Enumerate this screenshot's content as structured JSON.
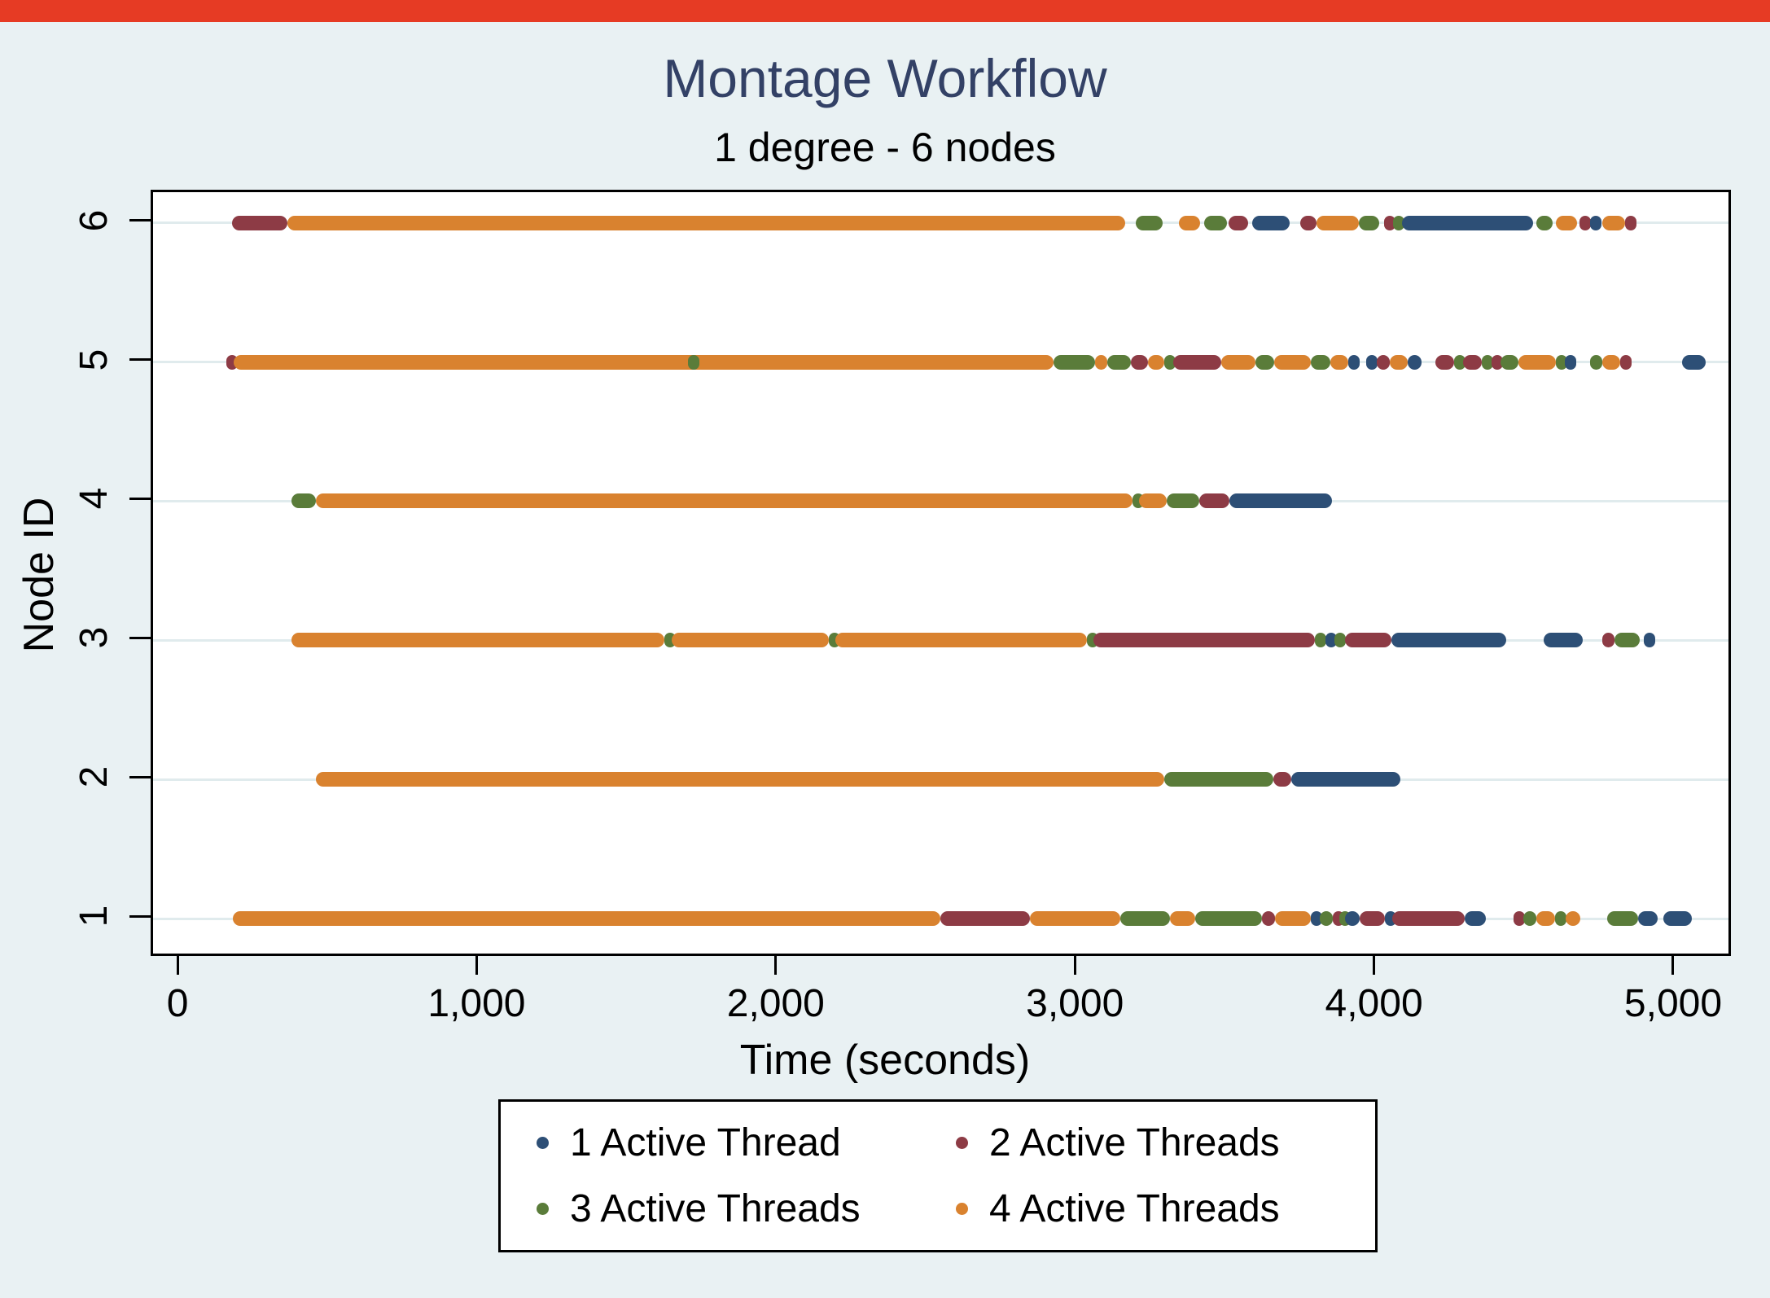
{
  "meta": {
    "top_strip_color": "#e63b24",
    "background_color": "#e9f1f3",
    "plot_background": "#ffffff",
    "grid_color": "#e0ebed",
    "axis_color": "#000000",
    "title_color": "#334166"
  },
  "chart_data": {
    "type": "scatter",
    "title": "Montage Workflow",
    "subtitle": "1 degree - 6 nodes",
    "xlabel": "Time (seconds)",
    "ylabel": "Node ID",
    "xlim": [
      -90,
      5177
    ],
    "ylim": [
      0.75,
      6.22
    ],
    "grid": "horizontal-only",
    "legend_position": "bottom-center",
    "x_ticks": [
      0,
      1000,
      2000,
      3000,
      4000,
      5000
    ],
    "x_tick_labels": [
      "0",
      "1,000",
      "2,000",
      "3,000",
      "4,000",
      "5,000"
    ],
    "y_ticks": [
      1,
      2,
      3,
      4,
      5,
      6
    ],
    "y_tick_labels": [
      "1",
      "2",
      "3",
      "4",
      "5",
      "6"
    ],
    "colors": {
      "blue": "#2d4f76",
      "maroon": "#8d3b45",
      "green": "#5a7c3a",
      "orange": "#d9822f"
    },
    "legend": [
      {
        "label": "1 Active Thread",
        "color_key": "blue"
      },
      {
        "label": "2 Active Threads",
        "color_key": "maroon"
      },
      {
        "label": "3 Active Threads",
        "color_key": "green"
      },
      {
        "label": "4 Active Threads",
        "color_key": "orange"
      }
    ],
    "rows": [
      {
        "node": 6,
        "segments": [
          [
            "maroon",
            175,
            360
          ],
          [
            "orange",
            360,
            3160
          ],
          [
            "green",
            3195,
            3285
          ],
          [
            "orange",
            3340,
            3410
          ],
          [
            "green",
            3425,
            3500
          ],
          [
            "maroon",
            3505,
            3570
          ],
          [
            "blue",
            3585,
            3710
          ],
          [
            "maroon",
            3745,
            3800
          ],
          [
            "orange",
            3800,
            3940
          ],
          [
            "green",
            3940,
            4010
          ],
          [
            "maroon",
            4025,
            4045
          ],
          [
            "green",
            4055,
            4075
          ],
          [
            "blue",
            4085,
            4525
          ],
          [
            "green",
            4535,
            4590
          ],
          [
            "orange",
            4600,
            4670
          ],
          [
            "maroon",
            4680,
            4700
          ],
          [
            "blue",
            4715,
            4735
          ],
          [
            "orange",
            4755,
            4830
          ],
          [
            "maroon",
            4830,
            4850
          ]
        ]
      },
      {
        "node": 5,
        "segments": [
          [
            "maroon",
            155,
            180
          ],
          [
            "orange",
            180,
            2920
          ],
          [
            "green",
            1698,
            1712
          ],
          [
            "green",
            2920,
            3060
          ],
          [
            "orange",
            3060,
            3100
          ],
          [
            "green",
            3100,
            3180
          ],
          [
            "maroon",
            3180,
            3235
          ],
          [
            "orange",
            3235,
            3290
          ],
          [
            "green",
            3290,
            3320
          ],
          [
            "maroon",
            3320,
            3480
          ],
          [
            "orange",
            3480,
            3596
          ],
          [
            "green",
            3596,
            3658
          ],
          [
            "orange",
            3658,
            3781
          ],
          [
            "green",
            3781,
            3845
          ],
          [
            "orange",
            3845,
            3906
          ],
          [
            "blue",
            3906,
            3944
          ],
          [
            "blue",
            3966,
            4000
          ],
          [
            "maroon",
            4000,
            4045
          ],
          [
            "orange",
            4045,
            4105
          ],
          [
            "blue",
            4105,
            4150
          ],
          [
            "maroon",
            4197,
            4260
          ],
          [
            "green",
            4260,
            4290
          ],
          [
            "maroon",
            4290,
            4352
          ],
          [
            "green",
            4352,
            4385
          ],
          [
            "maroon",
            4385,
            4415
          ],
          [
            "green",
            4415,
            4475
          ],
          [
            "orange",
            4475,
            4600
          ],
          [
            "green",
            4600,
            4630
          ],
          [
            "blue",
            4630,
            4668
          ],
          [
            "green",
            4714,
            4755
          ],
          [
            "orange",
            4755,
            4815
          ],
          [
            "maroon",
            4815,
            4845
          ],
          [
            "blue",
            5022,
            5100
          ]
        ]
      },
      {
        "node": 4,
        "segments": [
          [
            "green",
            373,
            455
          ],
          [
            "orange",
            455,
            3185
          ],
          [
            "green",
            3185,
            3205
          ],
          [
            "orange",
            3205,
            3299
          ],
          [
            "green",
            3299,
            3408
          ],
          [
            "maroon",
            3408,
            3508
          ],
          [
            "blue",
            3508,
            3852
          ]
        ]
      },
      {
        "node": 3,
        "segments": [
          [
            "orange",
            373,
            1620
          ],
          [
            "green",
            1620,
            1645
          ],
          [
            "orange",
            1645,
            2170
          ],
          [
            "green",
            2170,
            2190
          ],
          [
            "orange",
            2190,
            3032
          ],
          [
            "green",
            3032,
            3055
          ],
          [
            "maroon",
            3055,
            3795
          ],
          [
            "green",
            3795,
            3830
          ],
          [
            "blue",
            3830,
            3850
          ],
          [
            "green",
            3860,
            3895
          ],
          [
            "maroon",
            3895,
            4050
          ],
          [
            "blue",
            4050,
            4435
          ],
          [
            "blue",
            4560,
            4690
          ],
          [
            "maroon",
            4755,
            4795
          ],
          [
            "green",
            4795,
            4880
          ],
          [
            "blue",
            4895,
            4915
          ]
        ]
      },
      {
        "node": 2,
        "segments": [
          [
            "orange",
            455,
            3290
          ],
          [
            "green",
            3290,
            3655
          ],
          [
            "maroon",
            3655,
            3715
          ],
          [
            "blue",
            3715,
            4080
          ]
        ]
      },
      {
        "node": 1,
        "segments": [
          [
            "orange",
            177,
            2542
          ],
          [
            "maroon",
            2542,
            2842
          ],
          [
            "orange",
            2842,
            3144
          ],
          [
            "green",
            3144,
            3310
          ],
          [
            "orange",
            3310,
            3395
          ],
          [
            "green",
            3395,
            3617
          ],
          [
            "maroon",
            3617,
            3660
          ],
          [
            "orange",
            3660,
            3781
          ],
          [
            "blue",
            3781,
            3811
          ],
          [
            "green",
            3811,
            3854
          ],
          [
            "maroon",
            3854,
            3876
          ],
          [
            "green",
            3876,
            3895
          ],
          [
            "blue",
            3895,
            3944
          ],
          [
            "maroon",
            3944,
            4028
          ],
          [
            "blue",
            4028,
            4053
          ],
          [
            "maroon",
            4053,
            4295
          ],
          [
            "blue",
            4295,
            4366
          ],
          [
            "maroon",
            4459,
            4491
          ],
          [
            "green",
            4491,
            4535
          ],
          [
            "orange",
            4535,
            4597
          ],
          [
            "green",
            4597,
            4633
          ],
          [
            "orange",
            4633,
            4682
          ],
          [
            "green",
            4772,
            4875
          ],
          [
            "blue",
            4875,
            4940
          ],
          [
            "blue",
            4959,
            5055
          ]
        ]
      }
    ]
  }
}
